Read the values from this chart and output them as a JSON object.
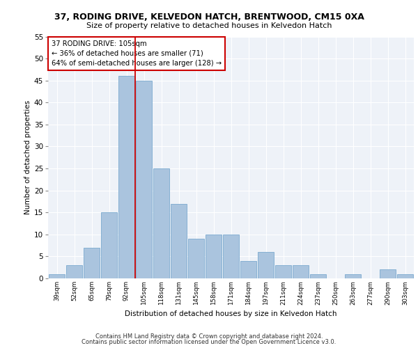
{
  "title1": "37, RODING DRIVE, KELVEDON HATCH, BRENTWOOD, CM15 0XA",
  "title2": "Size of property relative to detached houses in Kelvedon Hatch",
  "xlabel": "Distribution of detached houses by size in Kelvedon Hatch",
  "ylabel": "Number of detached properties",
  "categories": [
    "39sqm",
    "52sqm",
    "65sqm",
    "79sqm",
    "92sqm",
    "105sqm",
    "118sqm",
    "131sqm",
    "145sqm",
    "158sqm",
    "171sqm",
    "184sqm",
    "197sqm",
    "211sqm",
    "224sqm",
    "237sqm",
    "250sqm",
    "263sqm",
    "277sqm",
    "290sqm",
    "303sqm"
  ],
  "values": [
    1,
    3,
    7,
    15,
    46,
    45,
    25,
    17,
    9,
    10,
    10,
    4,
    6,
    3,
    3,
    1,
    0,
    1,
    0,
    2,
    1
  ],
  "bar_color": "#aac4de",
  "bar_edge_color": "#7aaacf",
  "vline_color": "#cc0000",
  "vline_index": 4.5,
  "annotation_lines": [
    "37 RODING DRIVE: 105sqm",
    "← 36% of detached houses are smaller (71)",
    "64% of semi-detached houses are larger (128) →"
  ],
  "annotation_box_color": "#cc0000",
  "ylim": [
    0,
    55
  ],
  "yticks": [
    0,
    5,
    10,
    15,
    20,
    25,
    30,
    35,
    40,
    45,
    50,
    55
  ],
  "bg_color": "#eef2f8",
  "footer1": "Contains HM Land Registry data © Crown copyright and database right 2024.",
  "footer2": "Contains public sector information licensed under the Open Government Licence v3.0."
}
